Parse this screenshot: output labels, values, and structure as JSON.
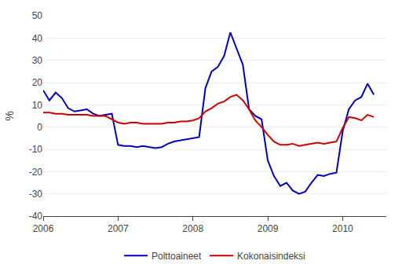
{
  "chart_data": {
    "type": "line",
    "y_label": "%",
    "x": [
      2006.0,
      2006.083,
      2006.167,
      2006.25,
      2006.333,
      2006.417,
      2006.5,
      2006.583,
      2006.667,
      2006.75,
      2006.833,
      2006.917,
      2007.0,
      2007.083,
      2007.167,
      2007.25,
      2007.333,
      2007.417,
      2007.5,
      2007.583,
      2007.667,
      2007.75,
      2007.833,
      2007.917,
      2008.0,
      2008.083,
      2008.167,
      2008.25,
      2008.333,
      2008.417,
      2008.5,
      2008.583,
      2008.667,
      2008.75,
      2008.833,
      2008.917,
      2009.0,
      2009.083,
      2009.167,
      2009.25,
      2009.333,
      2009.417,
      2009.5,
      2009.583,
      2009.667,
      2009.75,
      2009.833,
      2009.917,
      2010.0,
      2010.083,
      2010.167,
      2010.25,
      2010.333,
      2010.417
    ],
    "series": [
      {
        "name": "Polttoaineet",
        "color": "#0000bb",
        "values": [
          16.5,
          12.0,
          15.5,
          13.0,
          8.5,
          7.0,
          7.5,
          8.0,
          6.0,
          5.0,
          5.5,
          6.0,
          -8.0,
          -8.5,
          -8.5,
          -9.0,
          -8.5,
          -9.0,
          -9.5,
          -9.0,
          -7.5,
          -6.5,
          -6.0,
          -5.5,
          -5.0,
          -4.5,
          17.5,
          25.0,
          27.0,
          32.0,
          42.5,
          35.0,
          28.0,
          8.0,
          5.0,
          3.5,
          -15.0,
          -22.0,
          -26.5,
          -25.0,
          -28.5,
          -30.0,
          -29.0,
          -25.0,
          -21.5,
          -22.0,
          -21.0,
          -20.5,
          -2.0,
          8.0,
          12.0,
          13.5,
          19.5,
          14.5
        ]
      },
      {
        "name": "Kokonaisindeksi",
        "color": "#cc0000",
        "values": [
          6.5,
          6.5,
          6.0,
          6.0,
          5.5,
          5.5,
          5.5,
          5.5,
          5.0,
          5.0,
          5.0,
          3.5,
          2.0,
          1.5,
          2.0,
          2.0,
          1.5,
          1.5,
          1.5,
          1.5,
          2.0,
          2.0,
          2.5,
          2.5,
          3.0,
          4.0,
          7.0,
          8.5,
          10.5,
          11.5,
          13.5,
          14.5,
          12.0,
          8.0,
          3.0,
          0.0,
          -3.5,
          -6.5,
          -8.0,
          -8.0,
          -7.5,
          -8.5,
          -8.0,
          -7.5,
          -7.0,
          -7.5,
          -7.0,
          -6.5,
          -0.5,
          4.5,
          4.0,
          3.0,
          5.5,
          4.5
        ]
      }
    ],
    "xlim": [
      2006.0,
      2010.583
    ],
    "xticks": [
      2006,
      2007,
      2008,
      2009,
      2010
    ],
    "ylim": [
      -40,
      50
    ],
    "yticks": [
      -40,
      -30,
      -20,
      -10,
      0,
      10,
      20,
      30,
      40,
      50
    ],
    "grid": true,
    "legend": "bottom"
  }
}
